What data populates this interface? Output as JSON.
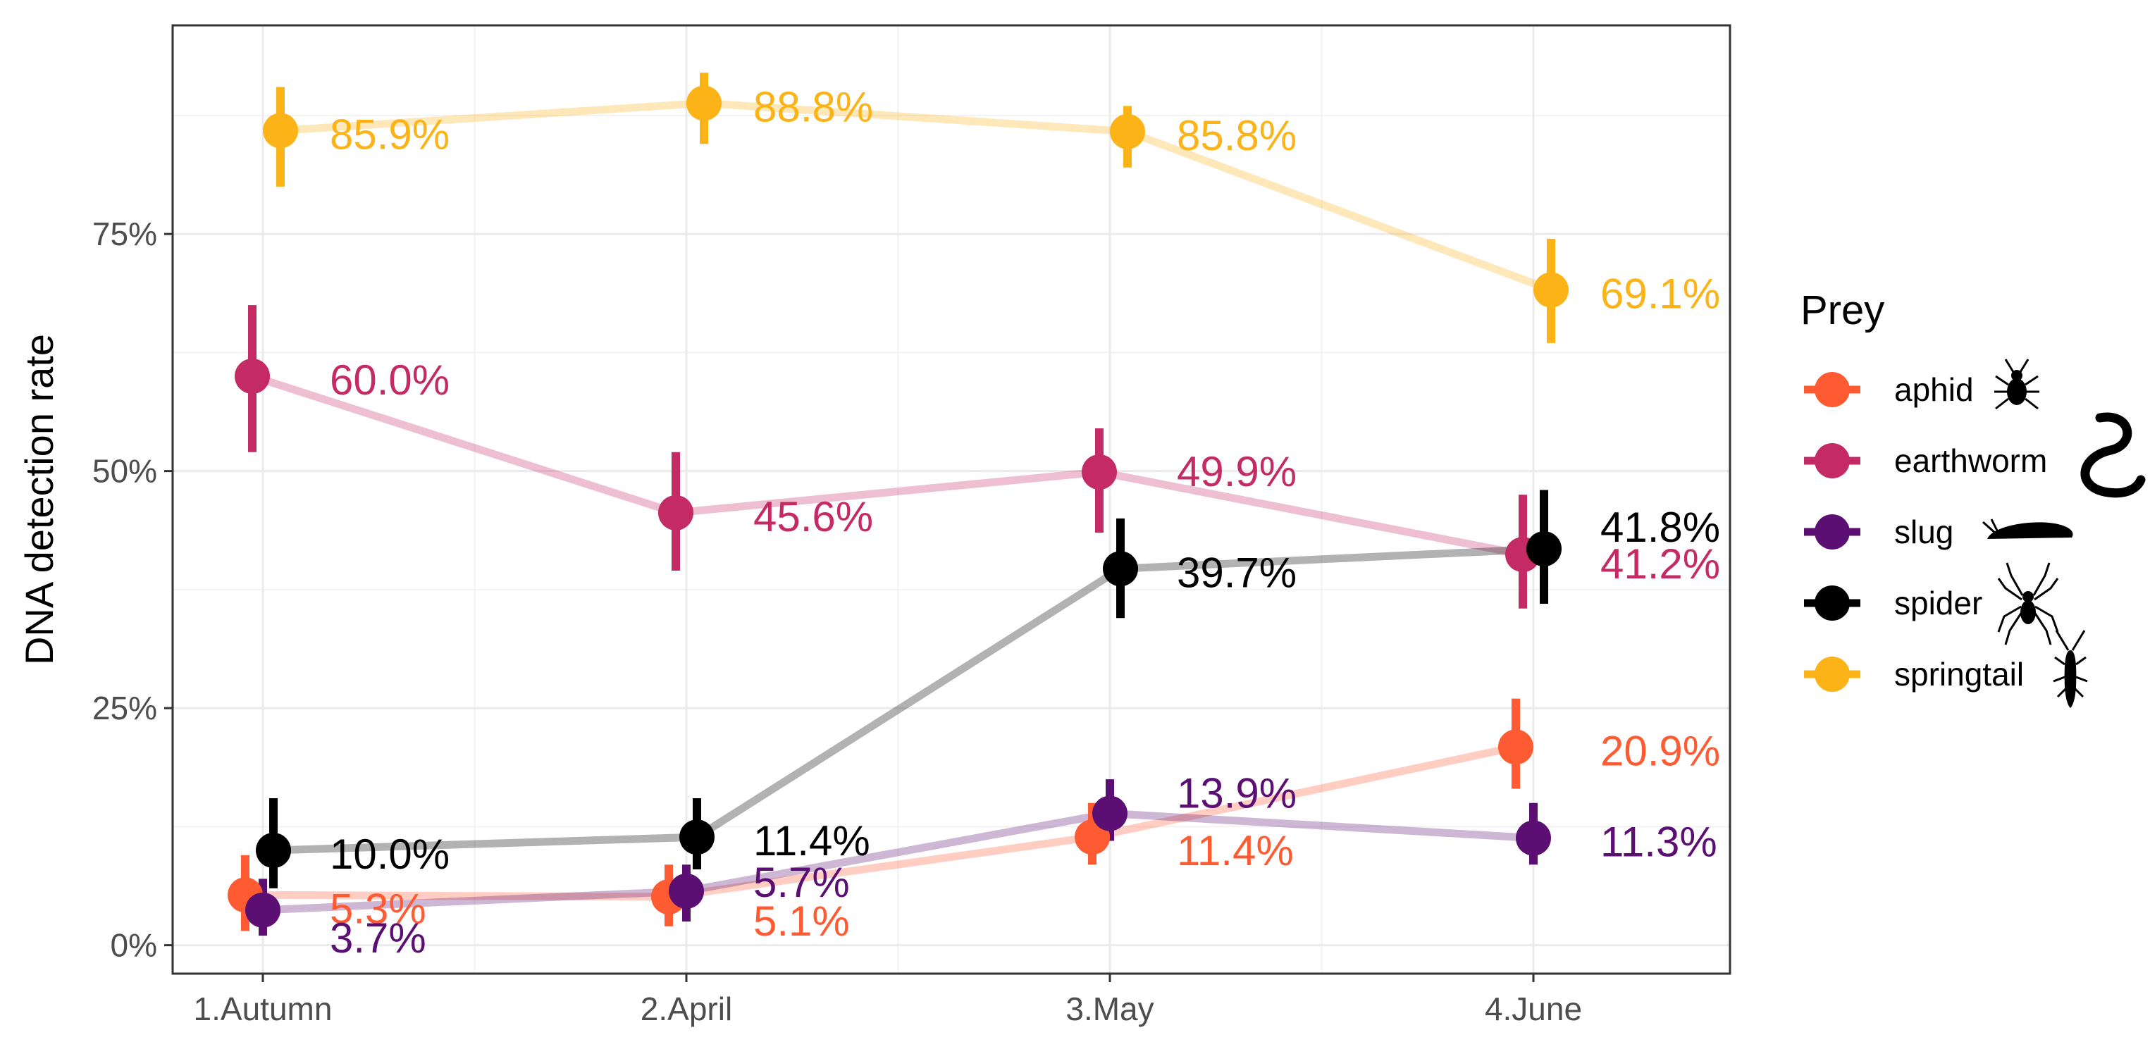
{
  "chart_data": {
    "type": "line",
    "title": "",
    "xlabel": "",
    "ylabel": "DNA detection rate",
    "categories": [
      "1.Autumn",
      "2.April",
      "3.May",
      "4.June"
    ],
    "ylim": [
      -3,
      97
    ],
    "yticks": [
      0,
      25,
      50,
      75
    ],
    "ytick_labels": [
      "0%",
      "25%",
      "50%",
      "75%"
    ],
    "grid": true,
    "legend": {
      "title": "Prey",
      "position": "right",
      "entries": [
        "aphid",
        "earthworm",
        "slug",
        "spider",
        "springtail"
      ]
    },
    "series": [
      {
        "name": "aphid",
        "color": "#FF5B33",
        "icon": "aphid-icon",
        "values": [
          5.3,
          5.1,
          11.4,
          20.9
        ],
        "lower": [
          1.5,
          2.0,
          8.5,
          16.5
        ],
        "upper": [
          9.5,
          8.5,
          15.0,
          26.0
        ],
        "labels": [
          "5.3%",
          "5.1%",
          "11.4%",
          "20.9%"
        ]
      },
      {
        "name": "earthworm",
        "color": "#C42A64",
        "icon": "earthworm-icon",
        "values": [
          60.0,
          45.6,
          49.9,
          41.2
        ],
        "lower": [
          52.0,
          39.5,
          43.5,
          35.5
        ],
        "upper": [
          67.5,
          52.0,
          54.5,
          47.5
        ],
        "labels": [
          "60.0%",
          "45.6%",
          "49.9%",
          "41.2%"
        ]
      },
      {
        "name": "slug",
        "color": "#5B0F73",
        "icon": "slug-icon",
        "values": [
          3.7,
          5.7,
          13.9,
          11.3
        ],
        "lower": [
          1.0,
          2.5,
          11.0,
          8.5
        ],
        "upper": [
          7.0,
          8.5,
          17.5,
          15.0
        ],
        "labels": [
          "3.7%",
          "5.7%",
          "13.9%",
          "11.3%"
        ]
      },
      {
        "name": "spider",
        "color": "#000000",
        "icon": "spider-icon",
        "values": [
          10.0,
          11.4,
          39.7,
          41.8
        ],
        "lower": [
          6.0,
          8.0,
          34.5,
          36.0
        ],
        "upper": [
          15.5,
          15.5,
          45.0,
          48.0
        ],
        "labels": [
          "10.0%",
          "11.4%",
          "39.7%",
          "41.8%"
        ]
      },
      {
        "name": "springtail",
        "color": "#FCB317",
        "icon": "springtail-icon",
        "values": [
          85.9,
          88.8,
          85.8,
          69.1
        ],
        "lower": [
          80.0,
          84.5,
          82.0,
          63.5
        ],
        "upper": [
          90.5,
          92.0,
          88.5,
          74.5
        ],
        "labels": [
          "85.9%",
          "88.8%",
          "85.8%",
          "69.1%"
        ]
      }
    ]
  }
}
